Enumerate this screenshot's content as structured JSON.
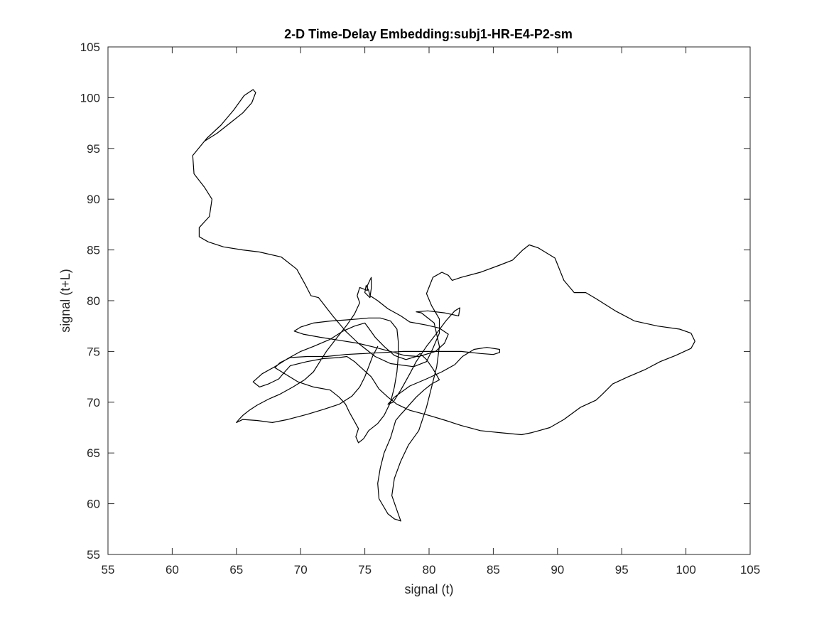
{
  "chart_data": {
    "type": "line",
    "title": "2-D Time-Delay Embedding:subj1-HR-E4-P2-sm",
    "xlabel": "signal (t)",
    "ylabel": "signal (t+L)",
    "xlim": [
      55,
      105
    ],
    "ylim": [
      55,
      105
    ],
    "xticks": [
      "55",
      "60",
      "65",
      "70",
      "75",
      "80",
      "85",
      "90",
      "95",
      "100",
      "105"
    ],
    "yticks": [
      "55",
      "60",
      "65",
      "70",
      "75",
      "80",
      "85",
      "90",
      "95",
      "100",
      "105"
    ],
    "grid": false,
    "legend": "none",
    "line_color": "#000000",
    "series": [
      {
        "points": [
          [
            62.5,
            95.7
          ],
          [
            63.5,
            96.5
          ],
          [
            64.5,
            97.5
          ],
          [
            65.5,
            98.5
          ],
          [
            66.2,
            99.5
          ],
          [
            66.5,
            100.5
          ],
          [
            66.3,
            100.8
          ],
          [
            65.6,
            100.2
          ],
          [
            64.8,
            98.8
          ],
          [
            63.8,
            97.3
          ],
          [
            62.7,
            96.0
          ],
          [
            61.6,
            94.3
          ],
          [
            61.7,
            92.5
          ],
          [
            62.5,
            91.2
          ],
          [
            63.1,
            90.0
          ],
          [
            62.9,
            88.3
          ],
          [
            62.1,
            87.2
          ],
          [
            62.1,
            86.3
          ],
          [
            62.8,
            85.8
          ],
          [
            64.0,
            85.3
          ],
          [
            65.5,
            85.0
          ],
          [
            66.8,
            84.8
          ],
          [
            68.5,
            84.3
          ],
          [
            69.7,
            83.1
          ],
          [
            70.4,
            81.5
          ],
          [
            70.8,
            80.5
          ],
          [
            71.4,
            80.3
          ],
          [
            72.5,
            78.5
          ],
          [
            73.5,
            77.0
          ],
          [
            74.5,
            75.8
          ],
          [
            75.8,
            74.5
          ],
          [
            77.0,
            73.8
          ],
          [
            78.8,
            73.5
          ],
          [
            79.8,
            74.0
          ],
          [
            80.3,
            75.3
          ],
          [
            80.8,
            76.8
          ],
          [
            80.8,
            78.2
          ],
          [
            80.2,
            79.5
          ],
          [
            79.8,
            80.7
          ],
          [
            80.3,
            82.3
          ],
          [
            81.0,
            82.8
          ],
          [
            81.5,
            82.5
          ],
          [
            81.8,
            82.0
          ],
          [
            82.5,
            82.3
          ],
          [
            84.0,
            82.8
          ],
          [
            85.5,
            83.5
          ],
          [
            86.5,
            84.0
          ],
          [
            87.3,
            85.0
          ],
          [
            87.8,
            85.5
          ],
          [
            88.5,
            85.2
          ],
          [
            89.8,
            84.2
          ],
          [
            90.5,
            82.0
          ],
          [
            91.3,
            80.8
          ],
          [
            92.2,
            80.8
          ],
          [
            93.0,
            80.2
          ],
          [
            94.5,
            79.0
          ],
          [
            96.0,
            78.0
          ],
          [
            97.8,
            77.5
          ],
          [
            99.5,
            77.2
          ],
          [
            100.4,
            76.8
          ],
          [
            100.7,
            76.0
          ],
          [
            100.4,
            75.3
          ],
          [
            99.2,
            74.6
          ],
          [
            98.0,
            74.0
          ],
          [
            96.8,
            73.2
          ],
          [
            95.5,
            72.5
          ],
          [
            94.3,
            71.8
          ],
          [
            93.5,
            70.8
          ],
          [
            93.0,
            70.2
          ],
          [
            91.8,
            69.5
          ],
          [
            90.5,
            68.3
          ],
          [
            89.4,
            67.5
          ],
          [
            88.0,
            67.0
          ],
          [
            87.2,
            66.8
          ],
          [
            85.5,
            67.0
          ],
          [
            84.0,
            67.2
          ],
          [
            82.5,
            67.7
          ],
          [
            81.3,
            68.2
          ],
          [
            80.0,
            68.7
          ],
          [
            78.5,
            69.2
          ],
          [
            77.5,
            69.8
          ],
          [
            76.8,
            70.5
          ],
          [
            76.1,
            71.3
          ],
          [
            75.5,
            72.5
          ],
          [
            74.8,
            73.3
          ],
          [
            74.2,
            74.0
          ],
          [
            73.6,
            74.5
          ],
          [
            73.0,
            74.4
          ],
          [
            71.8,
            74.3
          ],
          [
            70.5,
            74.0
          ],
          [
            69.2,
            73.6
          ],
          [
            68.7,
            72.9
          ],
          [
            68.3,
            72.3
          ],
          [
            67.5,
            71.8
          ],
          [
            66.8,
            71.5
          ],
          [
            66.3,
            72.0
          ],
          [
            67.0,
            72.8
          ],
          [
            68.0,
            73.5
          ],
          [
            69.0,
            74.3
          ],
          [
            70.0,
            75.0
          ],
          [
            71.0,
            75.5
          ],
          [
            72.3,
            76.2
          ],
          [
            73.3,
            77.0
          ],
          [
            74.2,
            77.5
          ],
          [
            75.0,
            77.8
          ],
          [
            75.3,
            77.3
          ],
          [
            75.8,
            76.4
          ],
          [
            76.5,
            75.5
          ],
          [
            77.3,
            74.6
          ],
          [
            78.2,
            74.2
          ],
          [
            79.0,
            74.5
          ],
          [
            79.3,
            74.8
          ],
          [
            79.8,
            74.2
          ],
          [
            80.3,
            73.3
          ],
          [
            80.8,
            72.2
          ],
          [
            80.2,
            71.8
          ],
          [
            79.6,
            71.2
          ],
          [
            79.0,
            70.5
          ],
          [
            78.5,
            69.8
          ],
          [
            78.1,
            69.2
          ],
          [
            77.8,
            68.8
          ],
          [
            77.4,
            68.2
          ],
          [
            77.0,
            66.5
          ],
          [
            76.5,
            65.0
          ],
          [
            76.2,
            63.5
          ],
          [
            76.0,
            62.0
          ],
          [
            76.1,
            60.5
          ],
          [
            76.8,
            59.0
          ],
          [
            77.3,
            58.5
          ],
          [
            77.8,
            58.3
          ],
          [
            77.6,
            59.0
          ],
          [
            77.1,
            60.8
          ],
          [
            77.3,
            62.5
          ],
          [
            77.8,
            64.2
          ],
          [
            78.4,
            65.8
          ],
          [
            79.2,
            67.2
          ],
          [
            79.8,
            69.5
          ],
          [
            80.2,
            71.5
          ],
          [
            80.6,
            73.5
          ],
          [
            80.8,
            75.5
          ],
          [
            80.4,
            77.8
          ],
          [
            79.4,
            78.8
          ],
          [
            79.0,
            78.9
          ],
          [
            79.9,
            79.0
          ],
          [
            81.2,
            78.8
          ],
          [
            82.3,
            78.5
          ],
          [
            82.4,
            79.3
          ],
          [
            82.0,
            79.0
          ],
          [
            81.3,
            78.0
          ],
          [
            80.6,
            76.8
          ],
          [
            79.8,
            75.5
          ],
          [
            79.0,
            74.0
          ],
          [
            78.5,
            72.8
          ],
          [
            77.8,
            71.2
          ],
          [
            77.2,
            70.0
          ],
          [
            76.8,
            69.8
          ],
          [
            77.3,
            70.5
          ],
          [
            78.5,
            71.6
          ],
          [
            79.8,
            72.3
          ],
          [
            81.0,
            73.0
          ],
          [
            82.0,
            73.7
          ],
          [
            82.6,
            74.5
          ],
          [
            83.5,
            75.2
          ],
          [
            84.5,
            75.4
          ],
          [
            85.5,
            75.2
          ],
          [
            85.5,
            74.9
          ],
          [
            85.0,
            74.7
          ],
          [
            84.0,
            74.8
          ],
          [
            82.5,
            75.0
          ],
          [
            81.0,
            75.0
          ],
          [
            79.5,
            75.0
          ],
          [
            78.0,
            75.0
          ],
          [
            76.5,
            74.9
          ],
          [
            75.0,
            74.8
          ],
          [
            73.5,
            74.7
          ],
          [
            72.0,
            74.5
          ],
          [
            70.5,
            74.5
          ],
          [
            69.2,
            74.4
          ],
          [
            68.4,
            73.9
          ],
          [
            68.0,
            73.4
          ],
          [
            68.9,
            72.7
          ],
          [
            69.8,
            72.0
          ],
          [
            71.0,
            71.5
          ],
          [
            72.3,
            71.2
          ],
          [
            73.0,
            70.5
          ],
          [
            73.5,
            69.8
          ],
          [
            73.8,
            69.0
          ],
          [
            74.2,
            68.1
          ],
          [
            74.5,
            67.4
          ],
          [
            74.3,
            66.6
          ],
          [
            74.5,
            66.0
          ],
          [
            74.9,
            66.4
          ],
          [
            75.3,
            67.2
          ],
          [
            76.0,
            67.9
          ],
          [
            76.5,
            68.7
          ],
          [
            77.0,
            70.0
          ],
          [
            77.3,
            71.5
          ],
          [
            77.5,
            73.0
          ],
          [
            77.6,
            74.5
          ],
          [
            77.6,
            76.0
          ],
          [
            77.5,
            77.2
          ],
          [
            77.0,
            78.0
          ],
          [
            76.2,
            78.3
          ],
          [
            75.3,
            78.3
          ],
          [
            74.5,
            78.2
          ],
          [
            73.5,
            78.1
          ],
          [
            72.3,
            78.0
          ],
          [
            71.0,
            77.8
          ],
          [
            70.0,
            77.4
          ],
          [
            69.5,
            77.0
          ],
          [
            70.2,
            76.7
          ],
          [
            71.5,
            76.4
          ],
          [
            73.0,
            76.1
          ],
          [
            74.5,
            75.8
          ],
          [
            75.8,
            75.4
          ],
          [
            77.0,
            75.0
          ],
          [
            78.1,
            74.6
          ],
          [
            79.2,
            74.5
          ],
          [
            80.5,
            75.0
          ],
          [
            81.2,
            75.8
          ],
          [
            81.5,
            76.7
          ],
          [
            80.8,
            77.3
          ],
          [
            79.8,
            77.6
          ],
          [
            78.5,
            77.9
          ],
          [
            77.8,
            78.5
          ],
          [
            76.8,
            79.2
          ],
          [
            76.0,
            80.0
          ],
          [
            75.4,
            80.5
          ],
          [
            75.3,
            81.0
          ],
          [
            75.1,
            81.5
          ],
          [
            75.0,
            80.8
          ],
          [
            75.4,
            80.3
          ],
          [
            75.5,
            81.2
          ],
          [
            75.5,
            82.3
          ],
          [
            75.2,
            81.5
          ],
          [
            75.2,
            81.0
          ],
          [
            74.6,
            81.3
          ],
          [
            74.4,
            80.5
          ],
          [
            74.6,
            79.8
          ],
          [
            74.2,
            78.7
          ],
          [
            73.6,
            77.6
          ],
          [
            72.8,
            76.3
          ],
          [
            72.0,
            75.0
          ],
          [
            71.5,
            74.0
          ],
          [
            71.0,
            73.0
          ],
          [
            70.3,
            72.2
          ],
          [
            69.4,
            71.5
          ],
          [
            68.4,
            70.8
          ],
          [
            67.5,
            70.3
          ],
          [
            66.6,
            69.7
          ],
          [
            66.0,
            69.2
          ],
          [
            65.5,
            68.7
          ],
          [
            65.2,
            68.3
          ],
          [
            65.0,
            68.0
          ],
          [
            65.5,
            68.3
          ],
          [
            66.6,
            68.2
          ],
          [
            67.8,
            68.0
          ],
          [
            69.0,
            68.3
          ],
          [
            70.5,
            68.8
          ],
          [
            71.8,
            69.3
          ],
          [
            73.0,
            69.8
          ],
          [
            74.0,
            70.6
          ],
          [
            74.6,
            71.5
          ],
          [
            75.0,
            72.5
          ],
          [
            75.3,
            73.5
          ],
          [
            75.6,
            74.5
          ],
          [
            76.0,
            75.5
          ]
        ]
      }
    ]
  }
}
